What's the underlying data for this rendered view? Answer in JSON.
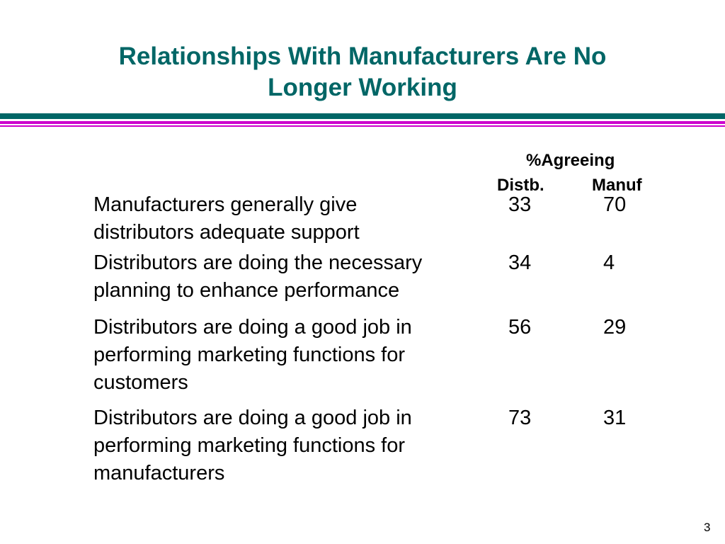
{
  "title": {
    "line1": "Relationships With Manufacturers Are No",
    "line2": "Longer Working"
  },
  "colors": {
    "title": "#006666",
    "rule_teal": "#006666",
    "rule_magenta": "#cc00cc"
  },
  "table": {
    "group_header": "%Agreeing",
    "columns": [
      "Distb.",
      "Manuf"
    ],
    "rows": [
      {
        "lines": [
          "Manufacturers generally give",
          "distributors adequate support"
        ],
        "distb": "33",
        "manuf": "70"
      },
      {
        "lines": [
          "Distributors are doing the necessary",
          "planning to enhance performance"
        ],
        "distb": "34",
        "manuf": "4"
      },
      {
        "lines": [
          "Distributors are doing a good job in",
          "performing marketing functions for",
          "customers"
        ],
        "distb": "56",
        "manuf": "29"
      },
      {
        "lines": [
          "Distributors are doing a good job in",
          "performing marketing functions for",
          "manufacturers"
        ],
        "distb": "73",
        "manuf": "31"
      }
    ]
  },
  "page_number": "3"
}
